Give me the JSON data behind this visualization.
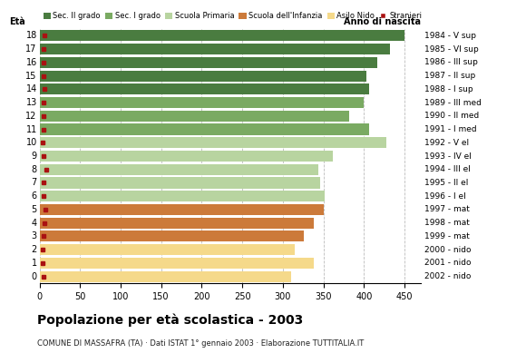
{
  "ages": [
    18,
    17,
    16,
    15,
    14,
    13,
    12,
    11,
    10,
    9,
    8,
    7,
    6,
    5,
    4,
    3,
    2,
    1,
    0
  ],
  "anno": [
    "1984 - V sup",
    "1985 - VI sup",
    "1986 - III sup",
    "1987 - II sup",
    "1988 - I sup",
    "1989 - III med",
    "1990 - II med",
    "1991 - I med",
    "1992 - V el",
    "1993 - IV el",
    "1994 - III el",
    "1995 - II el",
    "1996 - I el",
    "1997 - mat",
    "1998 - mat",
    "1999 - mat",
    "2000 - nido",
    "2001 - nido",
    "2002 - nido"
  ],
  "values": [
    450,
    432,
    416,
    403,
    406,
    400,
    382,
    406,
    428,
    362,
    344,
    346,
    352,
    350,
    338,
    326,
    315,
    338,
    310
  ],
  "stranieri": [
    6,
    5,
    5,
    5,
    6,
    5,
    5,
    5,
    4,
    5,
    8,
    5,
    5,
    7,
    6,
    5,
    4,
    4,
    5
  ],
  "bar_colors_list": [
    "#4a7c40",
    "#4a7c40",
    "#4a7c40",
    "#4a7c40",
    "#4a7c40",
    "#7aaa62",
    "#7aaa62",
    "#7aaa62",
    "#b8d4a0",
    "#b8d4a0",
    "#b8d4a0",
    "#b8d4a0",
    "#b8d4a0",
    "#cc7a3a",
    "#cc7a3a",
    "#cc7a3a",
    "#f5d98a",
    "#f5d98a",
    "#f5d98a"
  ],
  "stranieri_color": "#aa1111",
  "title": "Popolazione per età scolastica - 2003",
  "subtitle": "COMUNE DI MASSAFRA (TA) · Dati ISTAT 1° gennaio 2003 · Elaborazione TUTTITALIA.IT",
  "eta_label": "Età",
  "anno_label": "Anno di nascita",
  "xlim": [
    0,
    470
  ],
  "xticks": [
    0,
    50,
    100,
    150,
    200,
    250,
    300,
    350,
    400,
    450
  ],
  "background_color": "#ffffff",
  "grid_color": "#bbbbbb",
  "legend_labels": [
    "Sec. II grado",
    "Sec. I grado",
    "Scuola Primaria",
    "Scuola dell'Infanzia",
    "Asilo Nido",
    "Stranieri"
  ],
  "legend_colors": [
    "#4a7c40",
    "#7aaa62",
    "#b8d4a0",
    "#cc7a3a",
    "#f5d98a",
    "#aa1111"
  ]
}
